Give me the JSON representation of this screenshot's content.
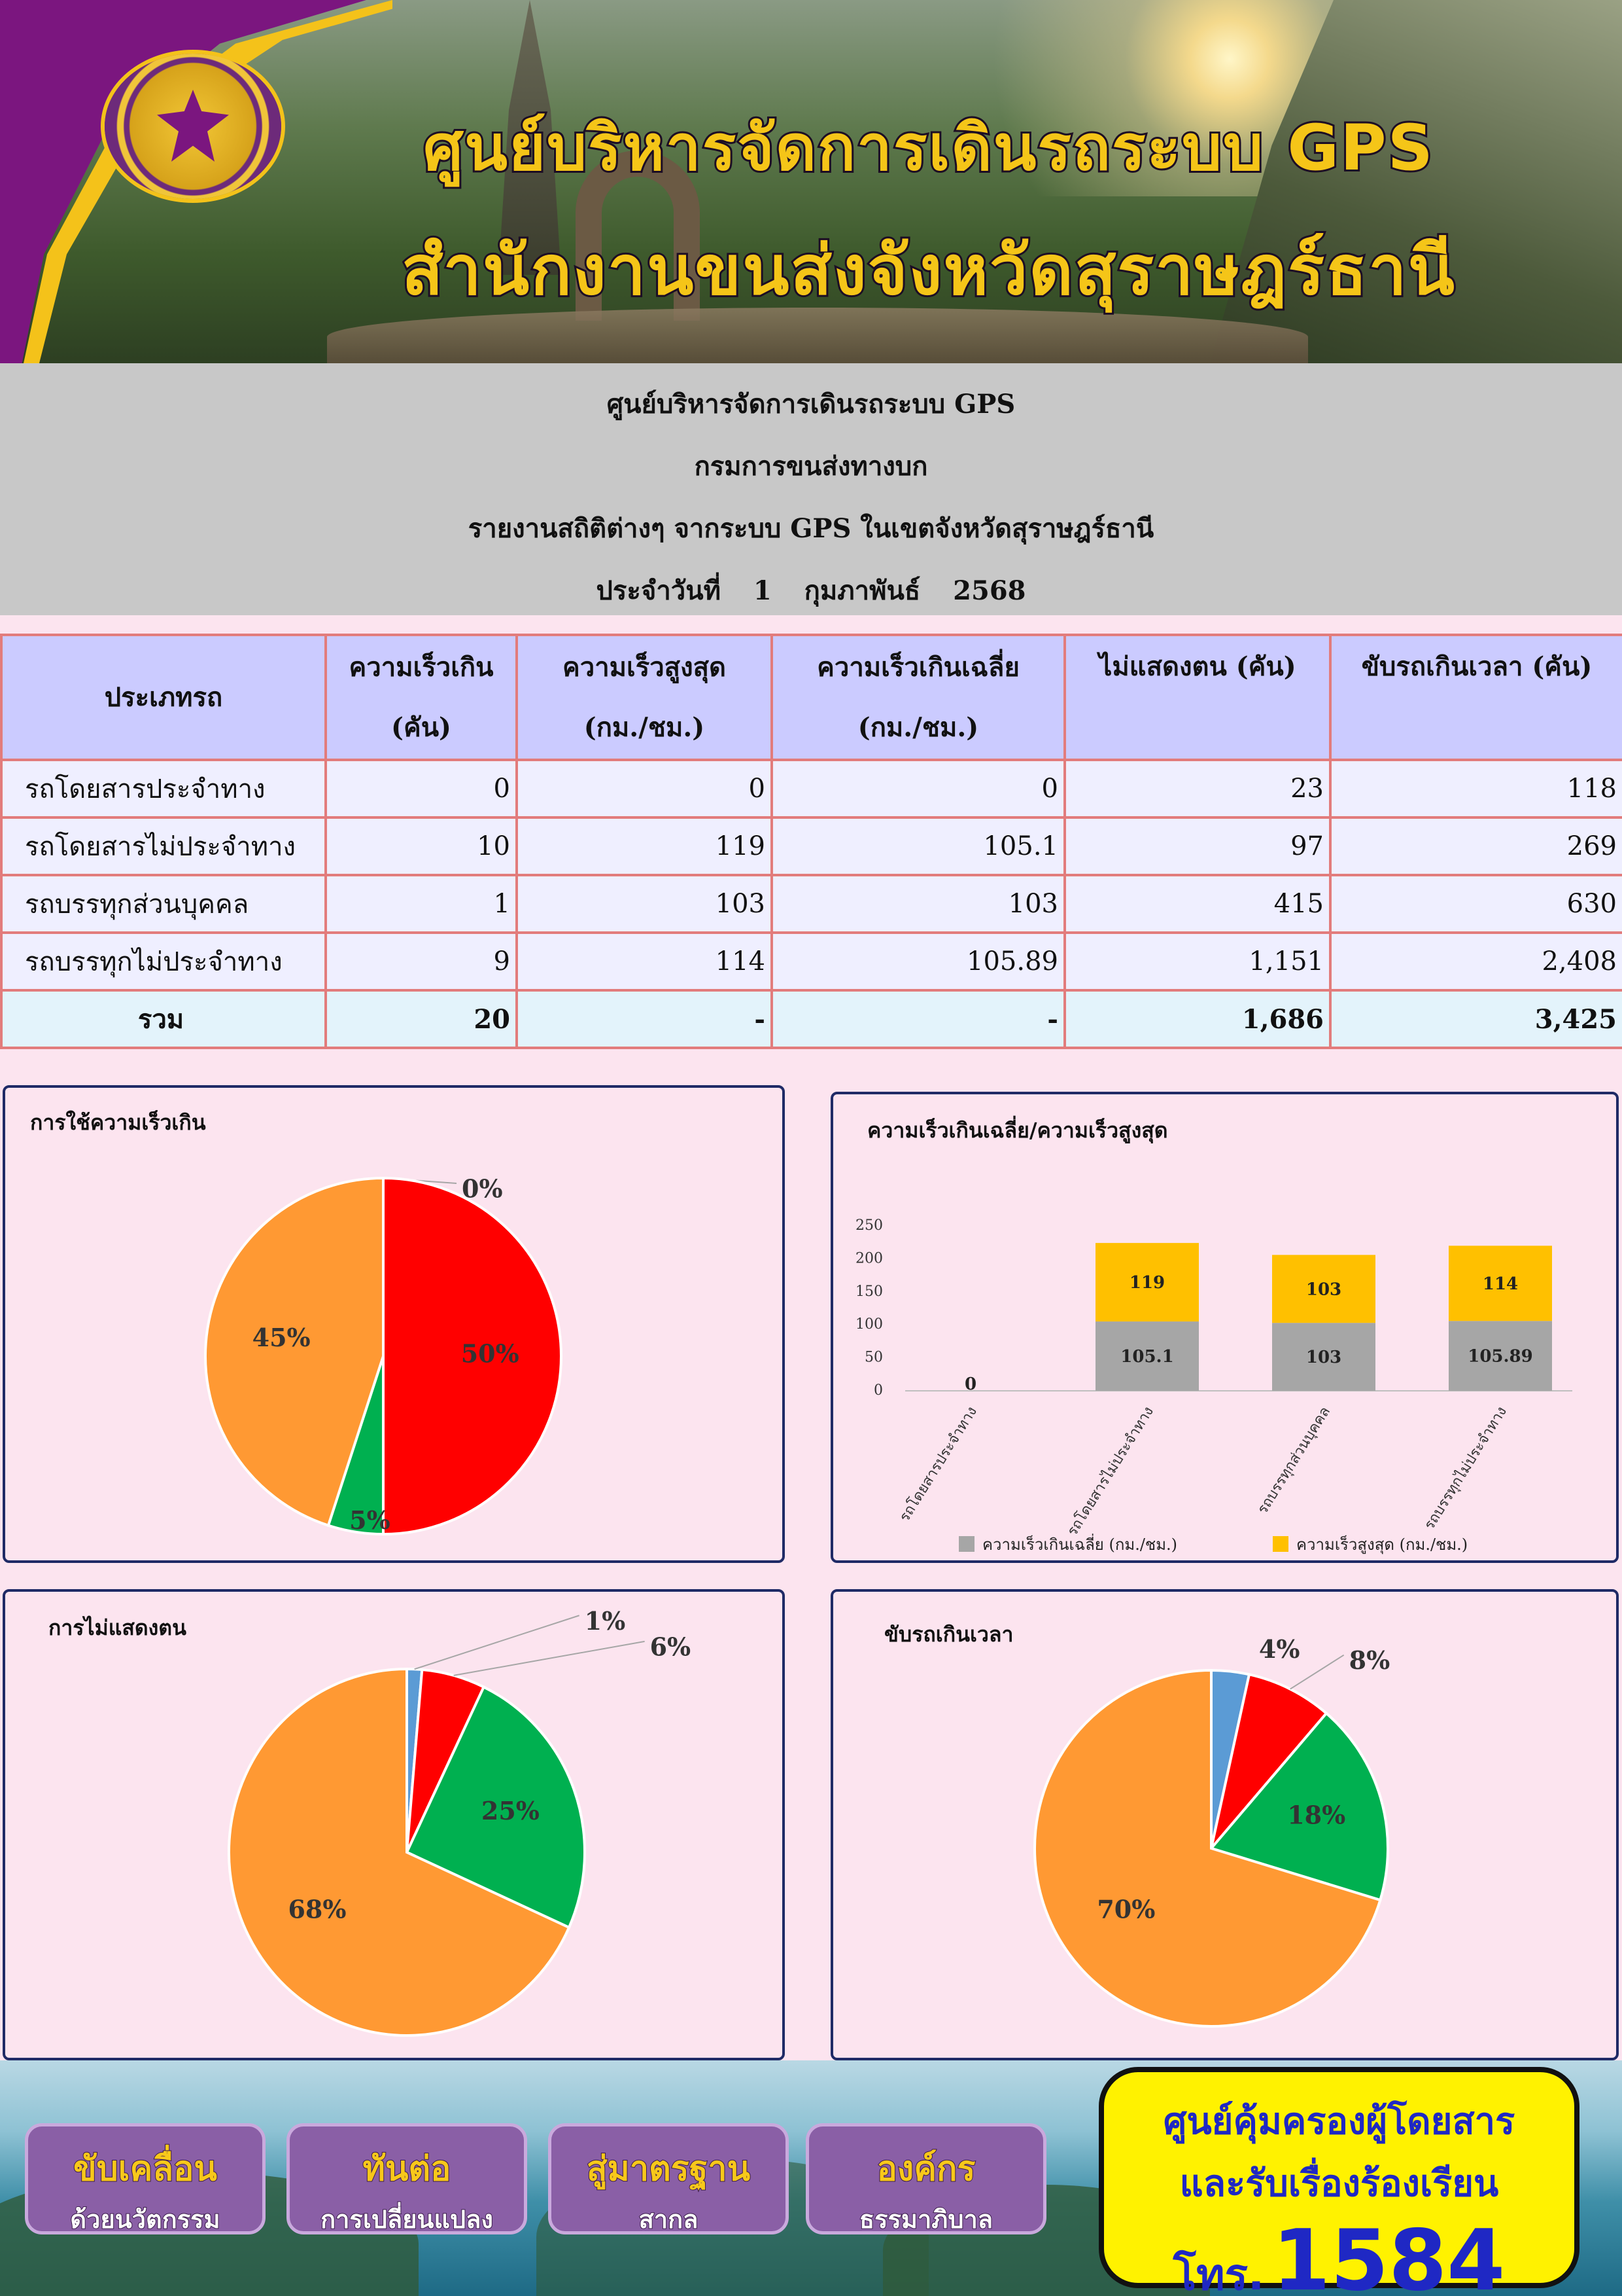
{
  "banner": {
    "title_line1": "ศูนย์บริหารจัดการเดินรถระบบ GPS",
    "title_line2": "สำนักงานขนส่งจังหวัดสุราษฎร์ธานี"
  },
  "report": {
    "line1": "ศูนย์บริหารจัดการเดินรถระบบ GPS",
    "line2": "กรมการขนส่งทางบก",
    "line3": "รายงานสถิติต่างๆ จากระบบ GPS ในเขตจังหวัดสุราษฎร์ธานี",
    "date_prefix": "ประจำวันที่",
    "day": "1",
    "month": "กุมภาพันธ์",
    "year": "2568"
  },
  "table": {
    "headers": [
      {
        "line1": "ประเภทรถ",
        "line2": ""
      },
      {
        "line1": "ความเร็วเกิน",
        "line2": "(คัน)"
      },
      {
        "line1": "ความเร็วสูงสุด",
        "line2": "(กม./ชม.)"
      },
      {
        "line1": "ความเร็วเกินเฉลี่ย",
        "line2": "(กม./ชม.)"
      },
      {
        "line1": "ไม่แสดงตน (คัน)",
        "line2": ""
      },
      {
        "line1": "ขับรถเกินเวลา (คัน)",
        "line2": ""
      }
    ],
    "rows": [
      [
        "รถโดยสารประจำทาง",
        "0",
        "0",
        "0",
        "23",
        "118"
      ],
      [
        "รถโดยสารไม่ประจำทาง",
        "10",
        "119",
        "105.1",
        "97",
        "269"
      ],
      [
        "รถบรรทุกส่วนบุคคล",
        "1",
        "103",
        "103",
        "415",
        "630"
      ],
      [
        "รถบรรทุกไม่ประจำทาง",
        "9",
        "114",
        "105.89",
        "1,151",
        "2,408"
      ]
    ],
    "total": [
      "รวม",
      "20",
      "-",
      "-",
      "1,686",
      "3,425"
    ]
  },
  "chart_data": [
    {
      "type": "pie",
      "title": "การใช้ความเร็วเกิน",
      "slices": [
        {
          "label": "รถโดยสารประจำทาง",
          "value": 0,
          "percent_label": "0%",
          "color": "#5b9bd5"
        },
        {
          "label": "รถโดยสารไม่ประจำทาง",
          "value": 10,
          "percent_label": "50%",
          "color": "#ff0000"
        },
        {
          "label": "รถบรรทุกส่วนบุคคล",
          "value": 1,
          "percent_label": "5%",
          "color": "#00b050"
        },
        {
          "label": "รถบรรทุกไม่ประจำทาง",
          "value": 9,
          "percent_label": "45%",
          "color": "#ff9933"
        }
      ]
    },
    {
      "type": "bar",
      "stacked": true,
      "title": "ความเร็วเกินเฉลี่ย/ความเร็วสูงสุด",
      "categories": [
        "รถโดยสารประจำทาง",
        "รถโดยสารไม่ประจำทาง",
        "รถบรรทุกส่วนบุคคล",
        "รถบรรทุกไม่ประจำทาง"
      ],
      "series": [
        {
          "name": "ความเร็วเกินเฉลี่ย (กม./ชม.)",
          "values": [
            0,
            105.1,
            103,
            105.89
          ],
          "labels": [
            "0",
            "105.1",
            "103",
            "105.89"
          ],
          "color": "#a6a6a6"
        },
        {
          "name": "ความเร็วสูงสุด (กม./ชม.)",
          "values": [
            0,
            119,
            103,
            114
          ],
          "labels": [
            "0",
            "119",
            "103",
            "114"
          ],
          "color": "#ffc000"
        }
      ],
      "ylim": [
        0,
        250
      ],
      "yticks": [
        "0",
        "50",
        "100",
        "150",
        "200",
        "250"
      ],
      "legend": "bottom"
    },
    {
      "type": "pie",
      "title": "การไม่แสดงตน",
      "slices": [
        {
          "label": "รถโดยสารประจำทาง",
          "value": 23,
          "percent_label": "1%",
          "color": "#5b9bd5"
        },
        {
          "label": "รถโดยสารไม่ประจำทาง",
          "value": 97,
          "percent_label": "6%",
          "color": "#ff0000"
        },
        {
          "label": "รถบรรทุกส่วนบุคคล",
          "value": 415,
          "percent_label": "25%",
          "color": "#00b050"
        },
        {
          "label": "รถบรรทุกไม่ประจำทาง",
          "value": 1151,
          "percent_label": "68%",
          "color": "#ff9933"
        }
      ]
    },
    {
      "type": "pie",
      "title": "ขับรถเกินเวลา",
      "slices": [
        {
          "label": "รถโดยสารประจำทาง",
          "value": 118,
          "percent_label": "4%",
          "color": "#5b9bd5"
        },
        {
          "label": "รถโดยสารไม่ประจำทาง",
          "value": 269,
          "percent_label": "8%",
          "color": "#ff0000"
        },
        {
          "label": "รถบรรทุกส่วนบุคคล",
          "value": 630,
          "percent_label": "18%",
          "color": "#00b050"
        },
        {
          "label": "รถบรรทุกไม่ประจำทาง",
          "value": 2408,
          "percent_label": "70%",
          "color": "#ff9933"
        }
      ]
    }
  ],
  "footer": {
    "buttons": [
      {
        "line1": "ขับเคลื่อน",
        "line2": "ด้วยนวัตกรรม"
      },
      {
        "line1": "ทันต่อ",
        "line2": "การเปลี่ยนแปลง"
      },
      {
        "line1": "สู่มาตรฐาน",
        "line2": "สากล"
      },
      {
        "line1": "องค์กร",
        "line2": "ธรรมาภิบาล"
      }
    ],
    "hotline": {
      "line1": "ศูนย์คุ้มครองผู้โดยสาร",
      "line2": "และรับเรื่องร้องเรียน",
      "tel_prefix": "โทร.",
      "number": "1584"
    }
  }
}
